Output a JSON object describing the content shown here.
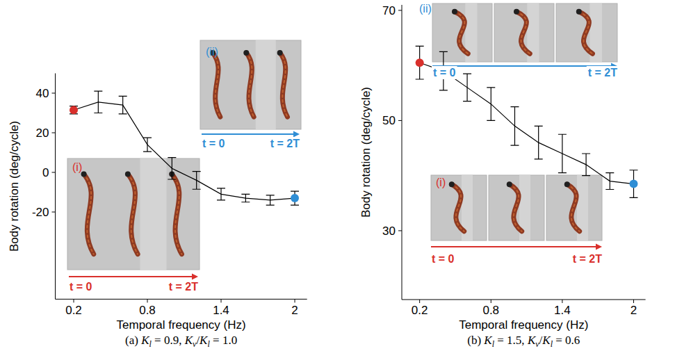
{
  "chart_data": [
    {
      "type": "line",
      "caption": [
        {
          "text": "(a) "
        },
        {
          "text": "K",
          "sub": "l"
        },
        {
          "text": " = 0.9, "
        },
        {
          "text": "K",
          "sub": "v"
        },
        {
          "text": "/"
        },
        {
          "text": "K",
          "sub": "l"
        },
        {
          "text": " = 1.0"
        }
      ],
      "x_label": "Temporal frequency (Hz)",
      "y_label": "Body rotation (deg/cycle)",
      "x": [
        0.2,
        0.4,
        0.6,
        0.8,
        1.0,
        1.2,
        1.4,
        1.6,
        1.8,
        2.0
      ],
      "series": [
        {
          "color": "#000000",
          "values": [
            31.5,
            35.5,
            34,
            14,
            2,
            -4,
            -11,
            -13,
            -14,
            -13
          ],
          "errors": [
            2,
            5.5,
            4.5,
            3.5,
            5.5,
            4.5,
            3,
            2,
            2.5,
            3.5
          ],
          "colors": [
            "#d9302c",
            null,
            null,
            null,
            null,
            null,
            null,
            null,
            null,
            "#2f8ed5"
          ]
        }
      ],
      "xlim": [
        0.05,
        2.1
      ],
      "xticks": [
        0.2,
        0.8,
        1.4,
        2
      ],
      "ylim": [
        -64,
        50
      ],
      "yticks": [
        -20,
        0,
        20,
        40
      ],
      "insets": [
        {
          "label": "(i)",
          "start_label": "t = 0",
          "end_label": "t = 2T",
          "color": "#d9302c"
        },
        {
          "label": "(ii)",
          "start_label": "t = 0",
          "end_label": "t = 2T",
          "color": "#2f8ed5"
        }
      ]
    },
    {
      "type": "line",
      "caption": [
        {
          "text": "(b) "
        },
        {
          "text": "K",
          "sub": "l"
        },
        {
          "text": " = 1.5, "
        },
        {
          "text": "K",
          "sub": "v"
        },
        {
          "text": "/"
        },
        {
          "text": "K",
          "sub": "l"
        },
        {
          "text": " = 0.6"
        }
      ],
      "x_label": "Temporal frequency (Hz)",
      "y_label": "Body rotation (deg/cycle)",
      "x": [
        0.2,
        0.4,
        0.6,
        0.8,
        1.0,
        1.2,
        1.4,
        1.6,
        1.8,
        2.0
      ],
      "series": [
        {
          "color": "#000000",
          "values": [
            60.5,
            59,
            56,
            53,
            49,
            46,
            44,
            42,
            39,
            38.5
          ],
          "errors": [
            3,
            3.5,
            2.5,
            3,
            3.5,
            3,
            3.5,
            2,
            1.5,
            2.5
          ],
          "colors": [
            "#d9302c",
            null,
            null,
            null,
            null,
            null,
            null,
            null,
            null,
            "#2f8ed5"
          ]
        }
      ],
      "xlim": [
        0.05,
        2.1
      ],
      "xticks": [
        0.2,
        0.8,
        1.4,
        2
      ],
      "ylim": [
        17.5,
        71
      ],
      "yticks": [
        30,
        50,
        70
      ],
      "insets": [
        {
          "label": "(i)",
          "start_label": "t = 0",
          "end_label": "t = 2T",
          "color": "#d9302c"
        },
        {
          "label": "(ii)",
          "start_label": "t = 0",
          "end_label": "t = 2T",
          "color": "#2f8ed5"
        }
      ]
    }
  ]
}
